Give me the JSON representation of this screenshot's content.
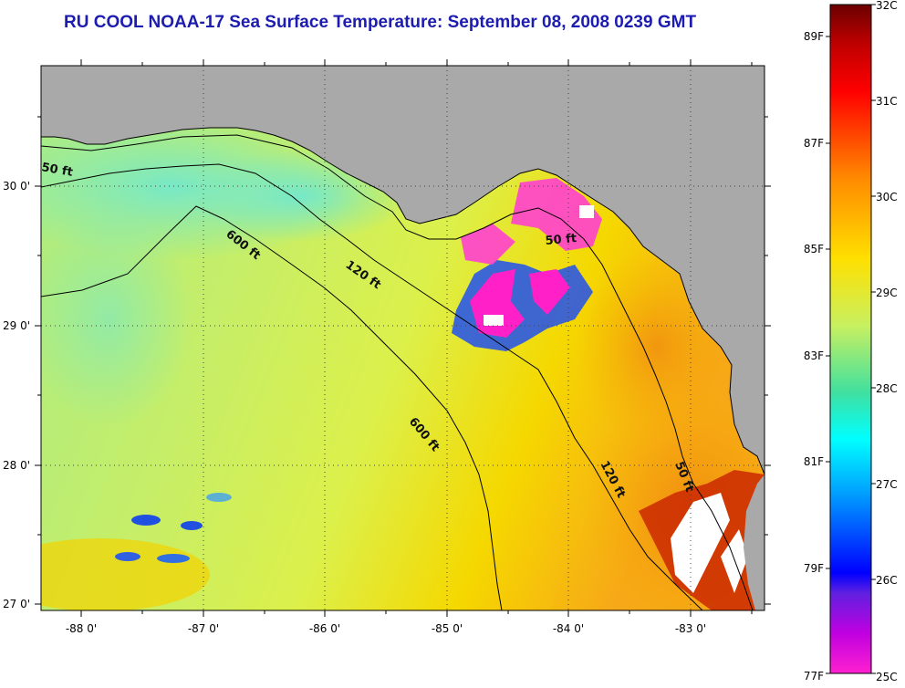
{
  "title": "RU COOL  NOAA-17  Sea Surface Temperature:  September 08, 2008 0239 GMT",
  "axes": {
    "lon_labels": [
      "-88 0'",
      "-87 0'",
      "-86 0'",
      "-85 0'",
      "-84 0'",
      "-83 0'"
    ],
    "lat_labels": [
      "30 0'",
      "29 0'",
      "28 0'",
      "27 0'"
    ]
  },
  "contour_labels": [
    "50 ft",
    "600 ft",
    "120 ft",
    "50 ft",
    "600 ft",
    "120 ft",
    "50 ft"
  ],
  "colorbar": {
    "celsius_labels": [
      "32C",
      "31C",
      "30C",
      "29C",
      "28C",
      "27C",
      "26C",
      "25C"
    ],
    "fahrenheit_labels": [
      "89F",
      "87F",
      "85F",
      "83F",
      "81F",
      "79F",
      "77F"
    ]
  },
  "colors": {
    "land": "#a9a9a9",
    "title": "#1c1cb0",
    "ocean_base": "#d6f04a"
  }
}
